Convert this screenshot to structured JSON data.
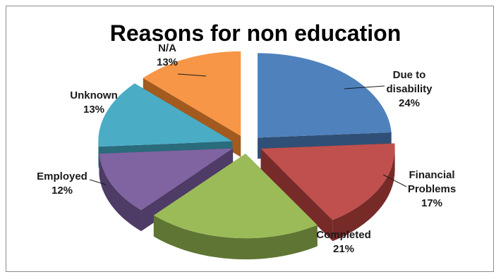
{
  "chart_data": {
    "type": "pie",
    "title": "Reasons for non education",
    "slices": [
      {
        "label": [
          "Due to",
          "disability"
        ],
        "value": 24,
        "value_label": "24%",
        "color": "#4F81BD",
        "side": "#2f4f76"
      },
      {
        "label": [
          "Financial",
          "Problems"
        ],
        "value": 17,
        "value_label": "17%",
        "color": "#C0504D",
        "side": "#772b29"
      },
      {
        "label": [
          "Completed"
        ],
        "value": 21,
        "value_label": "21%",
        "color": "#9BBB59",
        "side": "#5f7533"
      },
      {
        "label": [
          "Employed"
        ],
        "value": 12,
        "value_label": "12%",
        "color": "#8064A2",
        "side": "#4e3b66"
      },
      {
        "label": [
          "Unknown"
        ],
        "value": 13,
        "value_label": "13%",
        "color": "#4BACC6",
        "side": "#2a6b7c"
      },
      {
        "label": [
          "N/A"
        ],
        "value": 13,
        "value_label": "13%",
        "color": "#F79646",
        "side": "#a35a1e"
      }
    ],
    "legend": "none",
    "style": "3d-exploded"
  }
}
